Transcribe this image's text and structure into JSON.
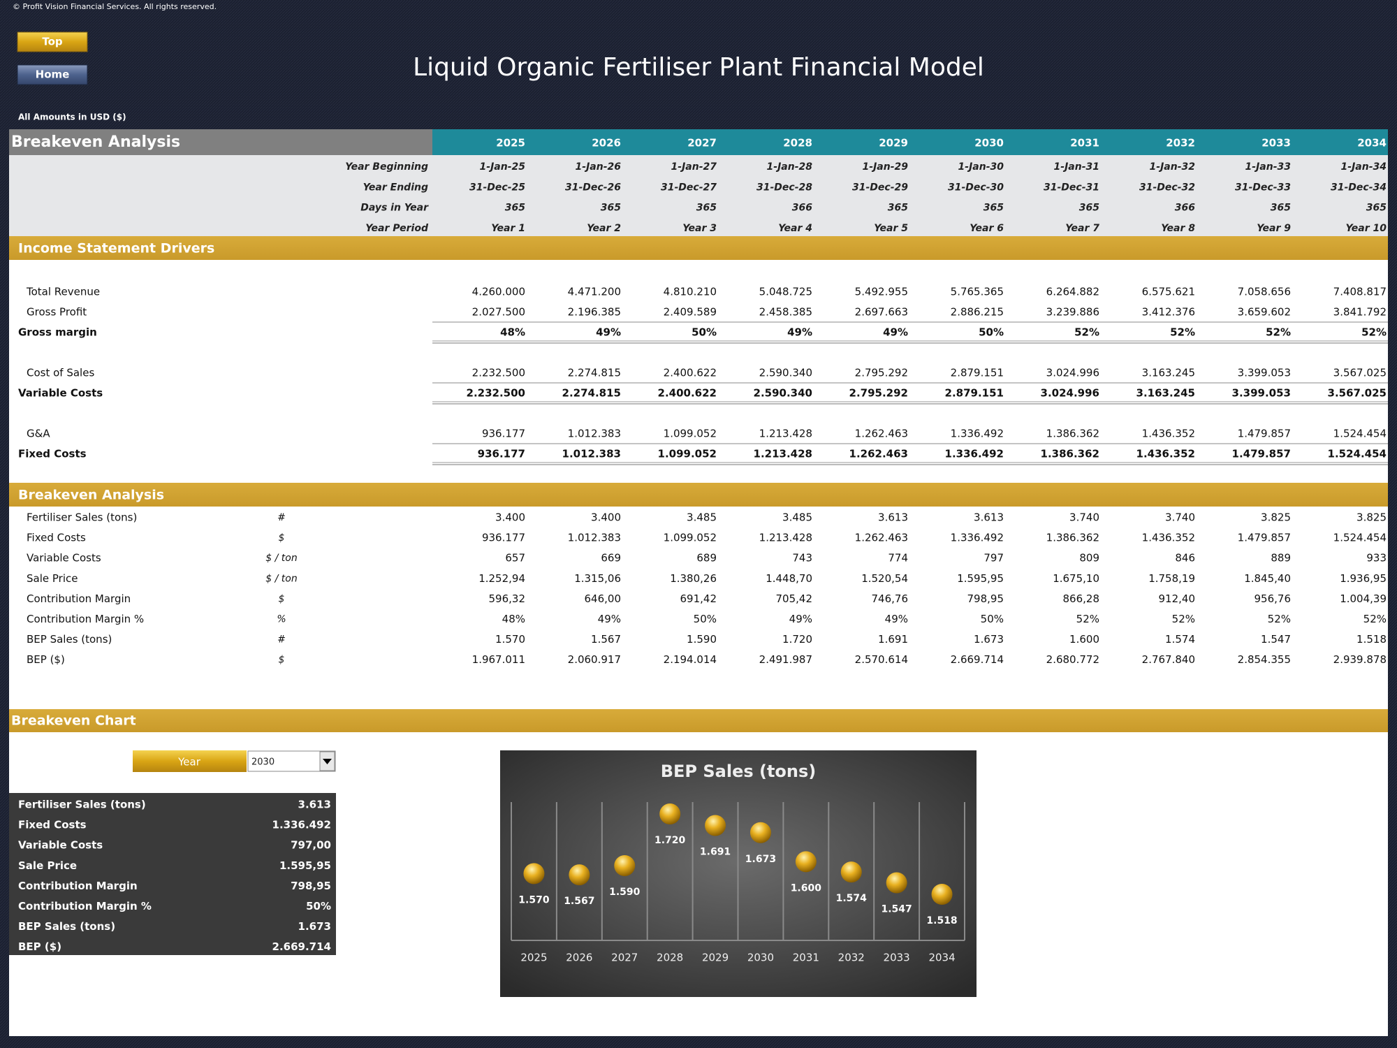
{
  "copyright": "© Profit Vision Financial Services. All rights reserved.",
  "buttons": {
    "top": "Top",
    "home": "Home"
  },
  "title": "Liquid Organic Fertiliser Plant Financial Model",
  "currency_note": "All Amounts in  USD ($)",
  "header": {
    "label": "Breakeven Analysis",
    "years": [
      "2025",
      "2026",
      "2027",
      "2028",
      "2029",
      "2030",
      "2031",
      "2032",
      "2033",
      "2034"
    ]
  },
  "timeline": [
    {
      "label": "Year Beginning",
      "values": [
        "1-Jan-25",
        "1-Jan-26",
        "1-Jan-27",
        "1-Jan-28",
        "1-Jan-29",
        "1-Jan-30",
        "1-Jan-31",
        "1-Jan-32",
        "1-Jan-33",
        "1-Jan-34"
      ]
    },
    {
      "label": "Year Ending",
      "values": [
        "31-Dec-25",
        "31-Dec-26",
        "31-Dec-27",
        "31-Dec-28",
        "31-Dec-29",
        "31-Dec-30",
        "31-Dec-31",
        "31-Dec-32",
        "31-Dec-33",
        "31-Dec-34"
      ]
    },
    {
      "label": "Days in Year",
      "values": [
        "365",
        "365",
        "365",
        "366",
        "365",
        "365",
        "365",
        "366",
        "365",
        "365"
      ]
    },
    {
      "label": "Year Period",
      "values": [
        "Year 1",
        "Year 2",
        "Year 3",
        "Year 4",
        "Year 5",
        "Year 6",
        "Year 7",
        "Year 8",
        "Year 9",
        "Year 10"
      ]
    }
  ],
  "income": {
    "title": "Income Statement Drivers",
    "groups": [
      {
        "rows": [
          {
            "label": "Total Revenue",
            "values": [
              "4.260.000",
              "4.471.200",
              "4.810.210",
              "5.048.725",
              "5.492.955",
              "5.765.365",
              "6.264.882",
              "6.575.621",
              "7.058.656",
              "7.408.817"
            ]
          },
          {
            "label": "Gross Profit",
            "values": [
              "2.027.500",
              "2.196.385",
              "2.409.589",
              "2.458.385",
              "2.697.663",
              "2.886.215",
              "3.239.886",
              "3.412.376",
              "3.659.602",
              "3.841.792"
            ]
          }
        ],
        "total": {
          "label": "Gross margin",
          "values": [
            "48%",
            "49%",
            "50%",
            "49%",
            "49%",
            "50%",
            "52%",
            "52%",
            "52%",
            "52%"
          ]
        }
      },
      {
        "rows": [
          {
            "label": "Cost of Sales",
            "values": [
              "2.232.500",
              "2.274.815",
              "2.400.622",
              "2.590.340",
              "2.795.292",
              "2.879.151",
              "3.024.996",
              "3.163.245",
              "3.399.053",
              "3.567.025"
            ]
          }
        ],
        "total": {
          "label": "Variable Costs",
          "values": [
            "2.232.500",
            "2.274.815",
            "2.400.622",
            "2.590.340",
            "2.795.292",
            "2.879.151",
            "3.024.996",
            "3.163.245",
            "3.399.053",
            "3.567.025"
          ]
        }
      },
      {
        "rows": [
          {
            "label": "G&A",
            "values": [
              "936.177",
              "1.012.383",
              "1.099.052",
              "1.213.428",
              "1.262.463",
              "1.336.492",
              "1.386.362",
              "1.436.352",
              "1.479.857",
              "1.524.454"
            ]
          }
        ],
        "total": {
          "label": "Fixed Costs",
          "values": [
            "936.177",
            "1.012.383",
            "1.099.052",
            "1.213.428",
            "1.262.463",
            "1.336.492",
            "1.386.362",
            "1.436.352",
            "1.479.857",
            "1.524.454"
          ]
        }
      }
    ]
  },
  "breakeven": {
    "title": "Breakeven Analysis",
    "rows": [
      {
        "label": "Fertiliser Sales (tons)",
        "unit": "#",
        "values": [
          "3.400",
          "3.400",
          "3.485",
          "3.485",
          "3.613",
          "3.613",
          "3.740",
          "3.740",
          "3.825",
          "3.825"
        ]
      },
      {
        "label": "Fixed Costs",
        "unit": "$",
        "values": [
          "936.177",
          "1.012.383",
          "1.099.052",
          "1.213.428",
          "1.262.463",
          "1.336.492",
          "1.386.362",
          "1.436.352",
          "1.479.857",
          "1.524.454"
        ]
      },
      {
        "label": "Variable Costs",
        "unit": "$ / ton",
        "values": [
          "657",
          "669",
          "689",
          "743",
          "774",
          "797",
          "809",
          "846",
          "889",
          "933"
        ]
      },
      {
        "label": "Sale Price",
        "unit": "$ / ton",
        "values": [
          "1.252,94",
          "1.315,06",
          "1.380,26",
          "1.448,70",
          "1.520,54",
          "1.595,95",
          "1.675,10",
          "1.758,19",
          "1.845,40",
          "1.936,95"
        ]
      },
      {
        "label": "Contribution Margin",
        "unit": "$",
        "values": [
          "596,32",
          "646,00",
          "691,42",
          "705,42",
          "746,76",
          "798,95",
          "866,28",
          "912,40",
          "956,76",
          "1.004,39"
        ]
      },
      {
        "label": "Contribution Margin %",
        "unit": "%",
        "values": [
          "48%",
          "49%",
          "50%",
          "49%",
          "49%",
          "50%",
          "52%",
          "52%",
          "52%",
          "52%"
        ]
      },
      {
        "label": "BEP Sales (tons)",
        "unit": "#",
        "values": [
          "1.570",
          "1.567",
          "1.590",
          "1.720",
          "1.691",
          "1.673",
          "1.600",
          "1.574",
          "1.547",
          "1.518"
        ]
      },
      {
        "label": "BEP ($)",
        "unit": "$",
        "values": [
          "1.967.011",
          "2.060.917",
          "2.194.014",
          "2.491.987",
          "2.570.614",
          "2.669.714",
          "2.680.772",
          "2.767.840",
          "2.854.355",
          "2.939.878"
        ]
      }
    ]
  },
  "breakeven_chart": {
    "title": "Breakeven Chart",
    "selector_label": "Year",
    "selected": "2030",
    "summary": [
      {
        "label": "Fertiliser Sales (tons)",
        "value": "3.613"
      },
      {
        "label": "Fixed Costs",
        "value": "1.336.492"
      },
      {
        "label": "Variable Costs",
        "value": "797,00"
      },
      {
        "label": "Sale Price",
        "value": "1.595,95"
      },
      {
        "label": "Contribution Margin",
        "value": "798,95"
      },
      {
        "label": "Contribution Margin %",
        "value": "50%"
      },
      {
        "label": "BEP Sales (tons)",
        "value": "1.673"
      },
      {
        "label": "BEP ($)",
        "value": "2.669.714"
      }
    ]
  },
  "chart_data": {
    "type": "dot",
    "title": "BEP Sales (tons)",
    "categories": [
      "2025",
      "2026",
      "2027",
      "2028",
      "2029",
      "2030",
      "2031",
      "2032",
      "2033",
      "2034"
    ],
    "values": [
      1570,
      1567,
      1590,
      1720,
      1691,
      1673,
      1600,
      1574,
      1547,
      1518
    ],
    "value_labels": [
      "1.570",
      "1.567",
      "1.590",
      "1.720",
      "1.691",
      "1.673",
      "1.600",
      "1.574",
      "1.547",
      "1.518"
    ],
    "color": "#e8b020"
  }
}
